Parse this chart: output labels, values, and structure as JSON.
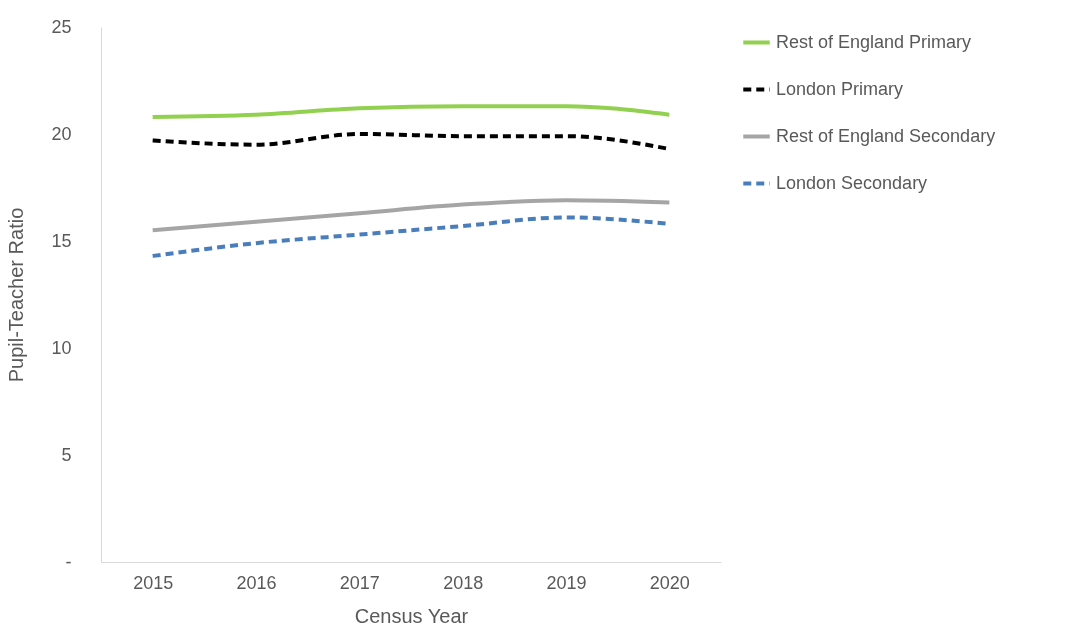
{
  "chart_data": {
    "type": "line",
    "xlabel": "Census Year",
    "ylabel": "Pupil-Teacher Ratio",
    "categories": [
      "2015",
      "2016",
      "2017",
      "2018",
      "2019",
      "2020"
    ],
    "ylim": [
      0,
      25
    ],
    "yticks": [
      {
        "value": 0,
        "label": "-"
      },
      5,
      10,
      15,
      20,
      25
    ],
    "grid": false,
    "legend": "right",
    "marker": "none",
    "series": [
      {
        "name": "Rest of England Primary",
        "color": "#92d050",
        "line_style": "solid",
        "values": [
          20.8,
          20.9,
          21.2,
          21.3,
          21.3,
          20.9
        ]
      },
      {
        "name": "London Primary",
        "color": "#000000",
        "line_style": "dashed",
        "values": [
          19.7,
          19.5,
          20.0,
          19.9,
          19.9,
          19.3
        ]
      },
      {
        "name": "Rest of England Secondary",
        "color": "#a5a5a5",
        "line_style": "solid",
        "values": [
          15.5,
          15.9,
          16.3,
          16.7,
          16.9,
          16.8
        ]
      },
      {
        "name": "London Secondary",
        "color": "#4a7ebb",
        "line_style": "dashed",
        "values": [
          14.3,
          14.9,
          15.3,
          15.7,
          16.1,
          15.8
        ]
      }
    ]
  }
}
